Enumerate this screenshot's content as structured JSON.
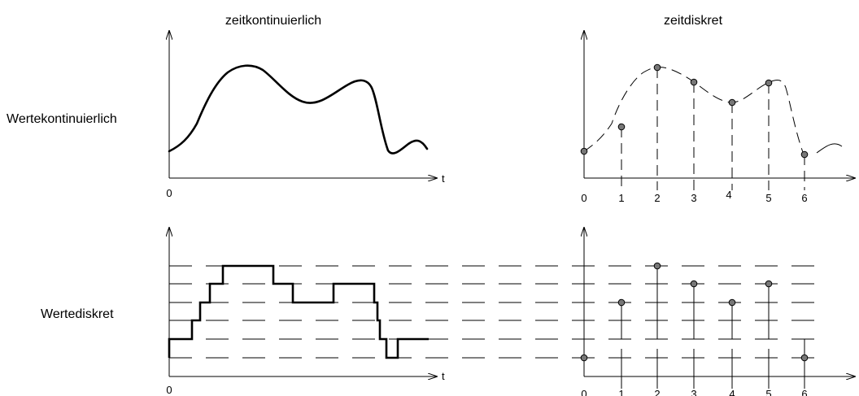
{
  "columns": {
    "continuous": "zeitkontinuierlich",
    "discrete": "zeitdiskret"
  },
  "rows": {
    "continuous": "Wertekontinuierlich",
    "discrete": "Wertediskret"
  },
  "axis": {
    "time_symbol": "t",
    "origin": "0"
  },
  "ticks": [
    "0",
    "1",
    "2",
    "3",
    "4",
    "5",
    "6"
  ],
  "colors": {
    "ink": "#000000",
    "sample_fill": "#777777"
  }
}
